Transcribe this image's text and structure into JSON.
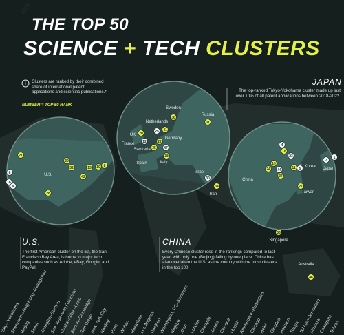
{
  "title": {
    "line1": "THE TOP 50",
    "science": "SCIENCE",
    "plus": "+",
    "tech": "TECH",
    "clusters": "CLUSTERS"
  },
  "note": "Clusters are ranked by their combined share of international patent applications and scientific publications.*",
  "legend": "NUMBER = TOP 50 RANK",
  "callouts": [
    {
      "heading": "JAPAN",
      "text": "The top-ranked Tokyo-Yokohama cluster made up just over 10% of all patent applications between 2018-2022."
    },
    {
      "heading": "U.S.",
      "text": "The first American cluster on the list, the San Francisco Bay Area, is home to major tech companies such as Adobe, eBay, Google, and PayPal."
    },
    {
      "heading": "CHINA",
      "text": "Every Chinese cluster rose in the rankings compared to last year, with only one (Beijing) falling by one place. China has also overtaken the U.S. as the country with the most clusters in the top 100."
    }
  ],
  "countries": [
    "U.S.",
    "Netherlands",
    "Sweden",
    "Russia",
    "UK",
    "France",
    "Germany",
    "Switzerland",
    "Spain",
    "Italy",
    "Israel",
    "Iran",
    "China",
    "S. Korea",
    "Japan",
    "Taiwan",
    "Singapore",
    "Australia"
  ],
  "ranks": [
    21,
    6,
    16,
    9,
    32,
    39,
    42,
    13,
    10,
    8,
    28,
    36,
    31,
    20,
    25,
    41,
    12,
    22,
    35,
    47,
    38,
    30,
    34,
    4,
    18,
    23,
    19,
    24,
    44,
    37,
    11,
    5,
    27,
    7,
    1,
    33,
    46
  ],
  "cities": [
    "Tokyo-Yokohama",
    "Shenzhen–Hong Kong–Guangzhou",
    "Beijing",
    "Seoul",
    "Shanghai–Suzhou",
    "San Jose–San Francisco",
    "Osaka–Kobe–Kyoto",
    "Boston–Cambridge",
    "San Diego",
    "New York City",
    "Nanjing",
    "Paris",
    "Wuhan",
    "Hangzhou",
    "Los Angeles",
    "Daejeon",
    "Washington, DC–Baltimore",
    "Nagoya",
    "Xi'an",
    "London",
    "Chengdu",
    "Seattle",
    "Cologne",
    "Munich",
    "Amsterdam–Rotterdam",
    "Chicago",
    "Hefei",
    "Qingdao",
    "Houston",
    "Tianjin",
    "Tel Aviv–Jerusalem",
    "Moscow",
    "Changsha",
    "Tehran"
  ]
}
